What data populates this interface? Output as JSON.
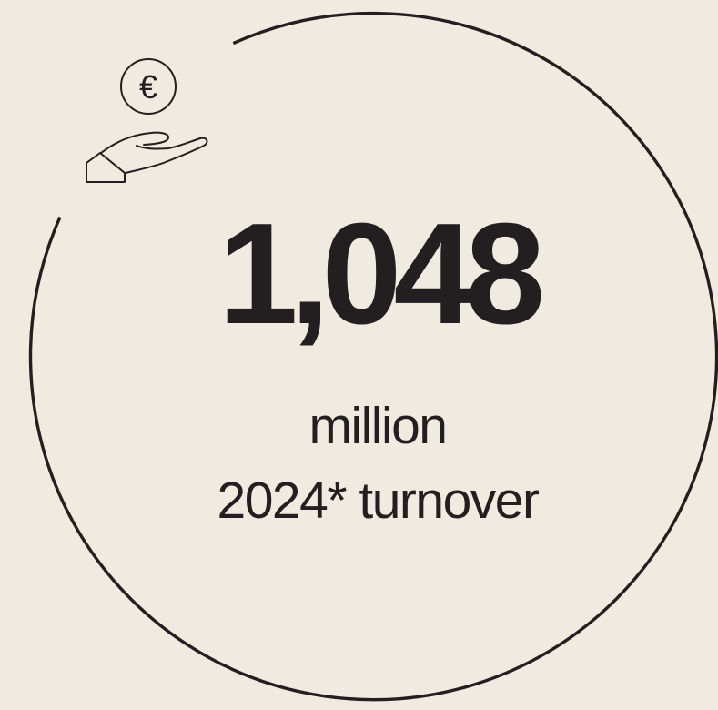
{
  "colors": {
    "background": "#f0ebe0",
    "ink": "#231f20"
  },
  "icon": {
    "name": "hand-holding-euro-icon",
    "symbol": "€"
  },
  "figure": {
    "value": "1,048",
    "unit": "million",
    "label": "2024* turnover"
  }
}
